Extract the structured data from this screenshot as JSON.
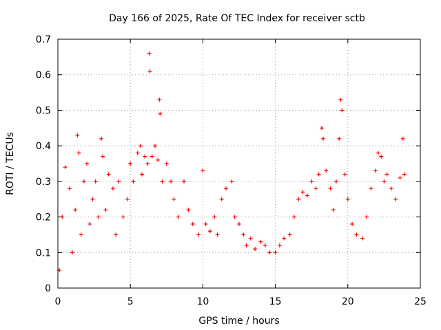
{
  "chart_data": {
    "type": "scatter",
    "title": "Day 166 of 2025, Rate Of TEC Index for receiver sctb",
    "xlabel": "GPS time / hours",
    "ylabel": "ROTI / TECUs",
    "xlim": [
      0,
      25
    ],
    "ylim": [
      0,
      0.7
    ],
    "x_ticks": [
      0,
      5,
      10,
      15,
      20,
      25
    ],
    "x_tick_labels": [
      "0",
      "5",
      "10",
      "15",
      "20",
      "25"
    ],
    "y_ticks": [
      0,
      0.1,
      0.2,
      0.3,
      0.4,
      0.5,
      0.6,
      0.7
    ],
    "y_tick_labels": [
      "0",
      "0.1",
      "0.2",
      "0.3",
      "0.4",
      "0.5",
      "0.6",
      "0.7"
    ],
    "grid": true,
    "marker": "plus",
    "color": "#ff0000",
    "series": [
      {
        "name": "ROTI",
        "x": [
          0.1,
          0.3,
          0.5,
          0.8,
          1.0,
          1.2,
          1.35,
          1.45,
          1.6,
          1.8,
          2.0,
          2.2,
          2.4,
          2.6,
          2.8,
          3.0,
          3.1,
          3.3,
          3.5,
          3.8,
          4.0,
          4.2,
          4.5,
          4.8,
          5.0,
          5.2,
          5.5,
          5.7,
          5.8,
          6.0,
          6.2,
          6.3,
          6.35,
          6.5,
          6.7,
          6.9,
          7.0,
          7.05,
          7.2,
          7.5,
          7.8,
          8.0,
          8.3,
          8.7,
          9.0,
          9.3,
          9.7,
          10.0,
          10.2,
          10.5,
          10.8,
          11.0,
          11.3,
          11.6,
          12.0,
          12.2,
          12.5,
          12.8,
          13.0,
          13.3,
          13.6,
          14.0,
          14.3,
          14.6,
          15.0,
          15.3,
          15.6,
          16.0,
          16.3,
          16.6,
          16.9,
          17.2,
          17.5,
          17.8,
          18.0,
          18.2,
          18.3,
          18.5,
          18.8,
          19.0,
          19.2,
          19.4,
          19.5,
          19.6,
          19.8,
          20.0,
          20.3,
          20.6,
          21.0,
          21.3,
          21.6,
          21.9,
          22.1,
          22.3,
          22.5,
          22.7,
          23.0,
          23.3,
          23.6,
          23.8,
          23.9
        ],
        "y": [
          0.05,
          0.2,
          0.34,
          0.28,
          0.1,
          0.22,
          0.43,
          0.38,
          0.15,
          0.3,
          0.35,
          0.18,
          0.25,
          0.3,
          0.2,
          0.42,
          0.37,
          0.22,
          0.32,
          0.28,
          0.15,
          0.3,
          0.2,
          0.25,
          0.35,
          0.3,
          0.38,
          0.4,
          0.32,
          0.37,
          0.35,
          0.66,
          0.61,
          0.37,
          0.4,
          0.36,
          0.53,
          0.49,
          0.3,
          0.35,
          0.3,
          0.25,
          0.2,
          0.3,
          0.22,
          0.18,
          0.15,
          0.33,
          0.18,
          0.16,
          0.2,
          0.15,
          0.25,
          0.28,
          0.3,
          0.2,
          0.18,
          0.15,
          0.12,
          0.14,
          0.11,
          0.13,
          0.12,
          0.1,
          0.1,
          0.12,
          0.14,
          0.15,
          0.2,
          0.25,
          0.27,
          0.26,
          0.3,
          0.28,
          0.32,
          0.45,
          0.42,
          0.33,
          0.28,
          0.22,
          0.3,
          0.42,
          0.53,
          0.5,
          0.32,
          0.25,
          0.18,
          0.15,
          0.14,
          0.2,
          0.28,
          0.33,
          0.38,
          0.37,
          0.3,
          0.32,
          0.28,
          0.25,
          0.31,
          0.42,
          0.32
        ]
      }
    ]
  }
}
